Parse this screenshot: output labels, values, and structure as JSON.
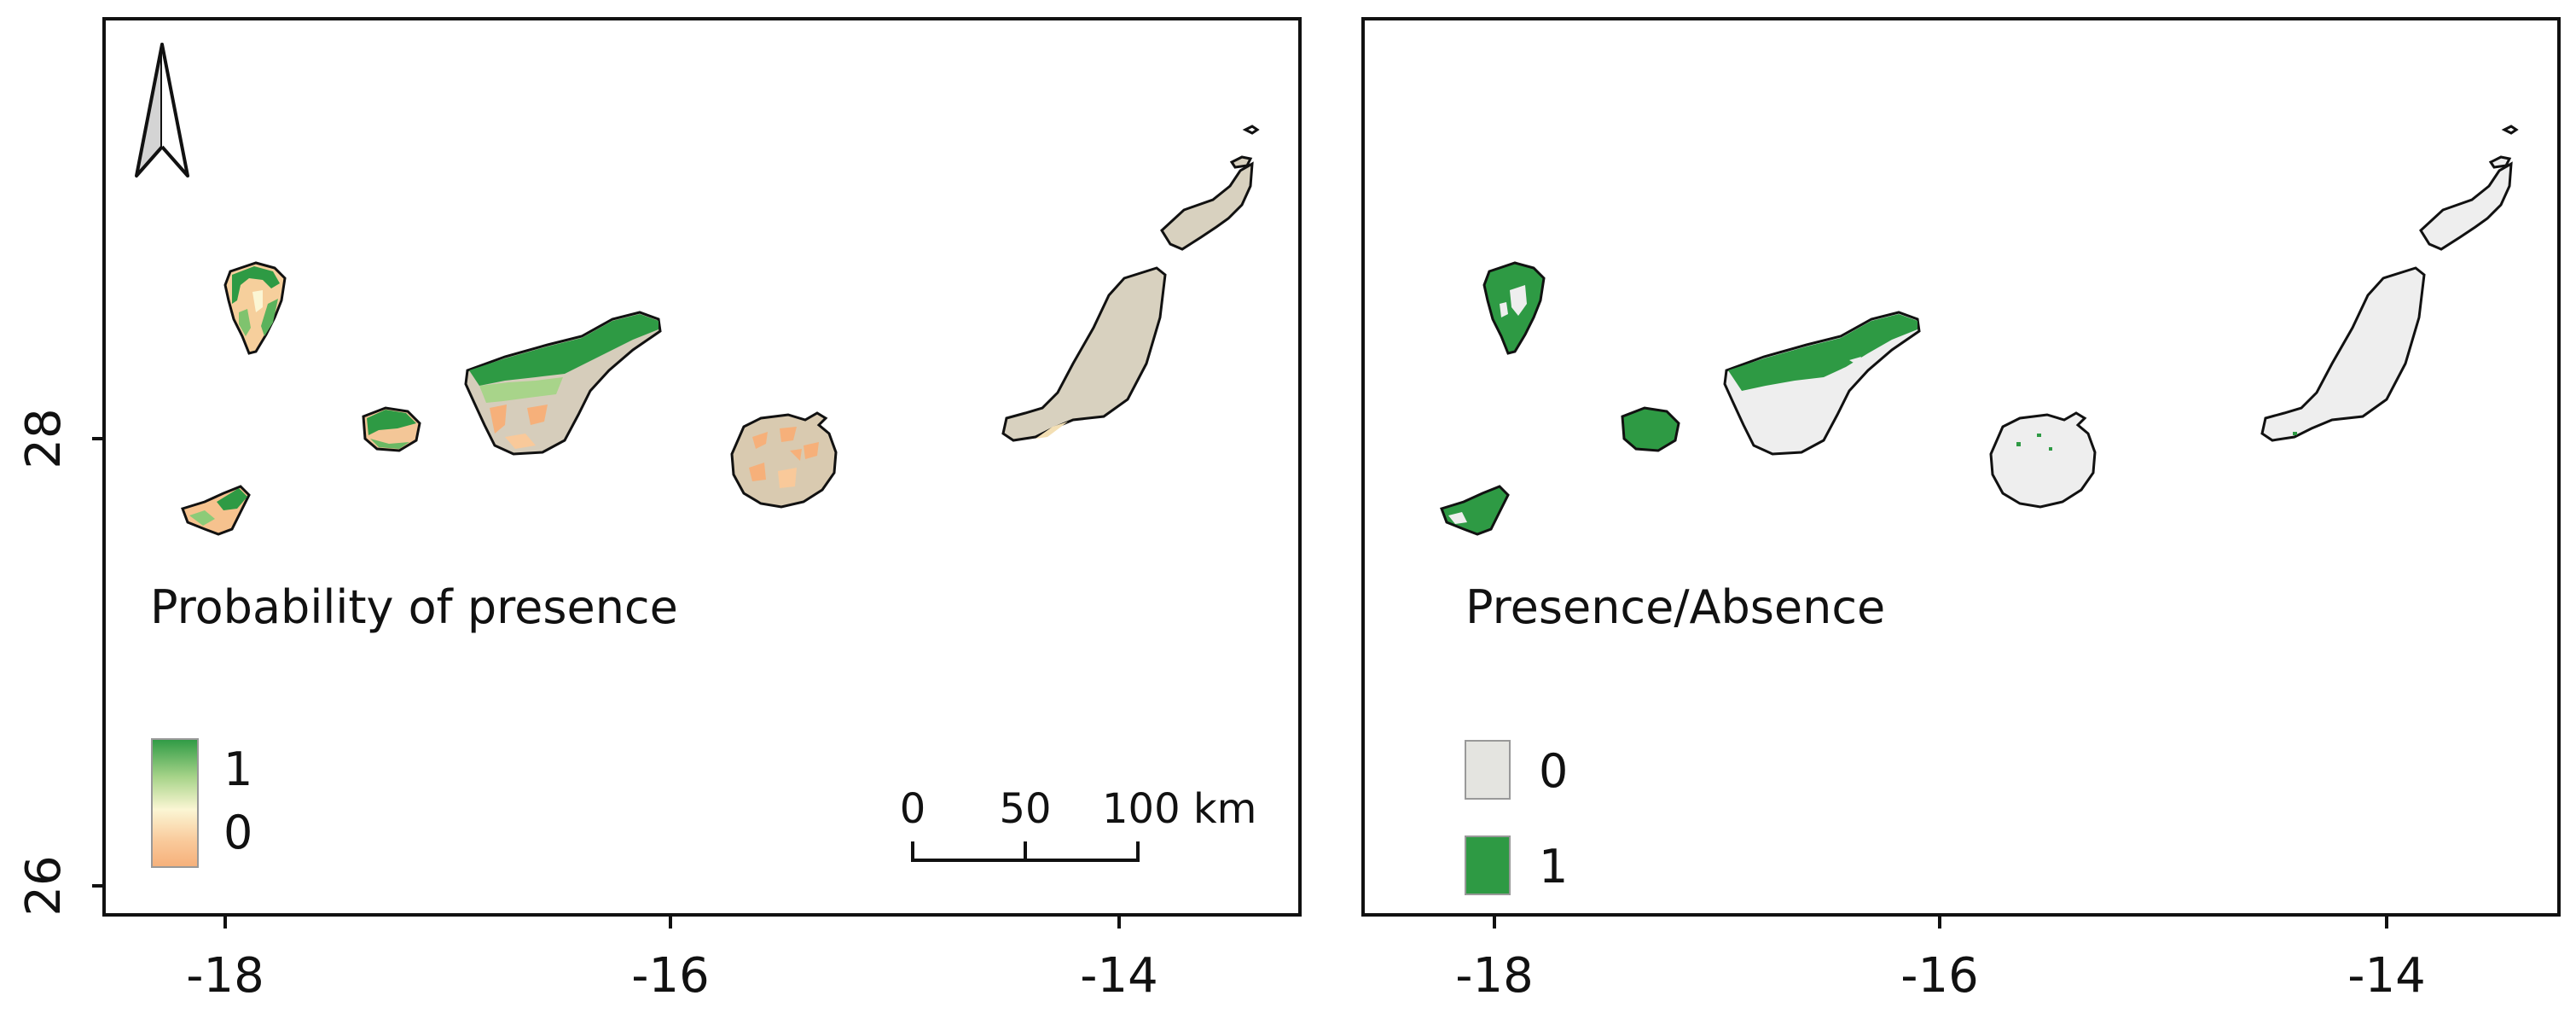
{
  "panels": {
    "left": {
      "legend_title": "Probability of presence",
      "legend_high": "1",
      "legend_low": "0",
      "scalebar": {
        "tick_0": "0",
        "tick_50": "50",
        "tick_100": "100 km"
      }
    },
    "right": {
      "legend_title": "Presence/Absence",
      "legend_item_0": "0",
      "legend_item_1": "1"
    }
  },
  "axes": {
    "x_ticks": [
      "-18",
      "-16",
      "-14"
    ],
    "y_ticks": [
      "28",
      "26"
    ]
  },
  "colors": {
    "presence_green": "#2e9a44",
    "absence_gray": "#eeeeee",
    "low_prob_beige": "#d8d1bf",
    "low_prob_orange": "#f6b07a",
    "gradient": [
      "#2e9a44",
      "#a8d48a",
      "#fbf6d4",
      "#f9c99a",
      "#f6b07a"
    ]
  },
  "icons": {
    "north_arrow": "north-arrow-icon"
  }
}
